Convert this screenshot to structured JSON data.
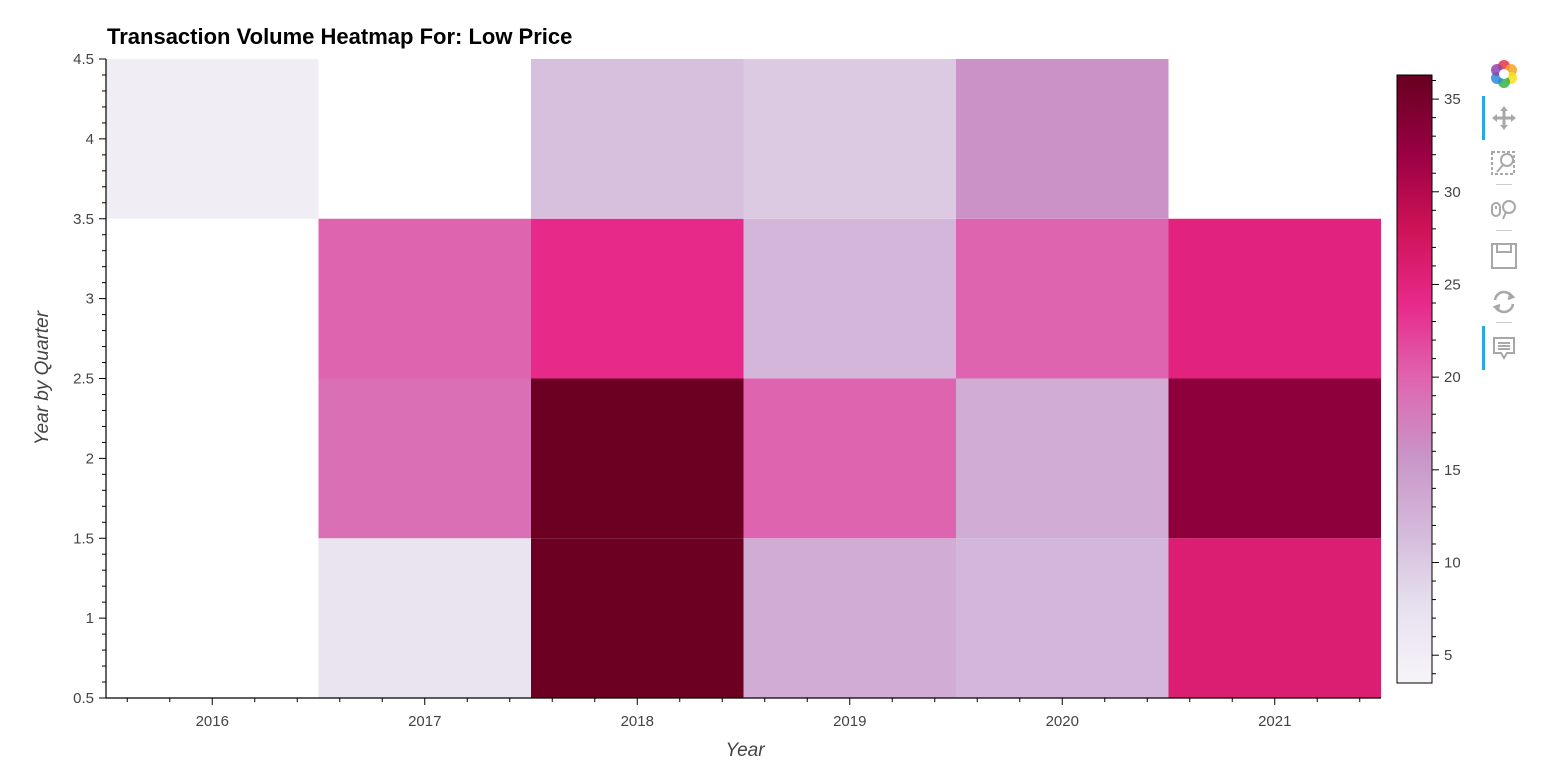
{
  "chart_data": {
    "type": "heatmap",
    "title": "Transaction Volume Heatmap For: Low Price",
    "xlabel": "Year",
    "ylabel": "Year by Quarter",
    "x_categories": [
      "2016",
      "2017",
      "2018",
      "2019",
      "2020",
      "2021"
    ],
    "y_ticks": [
      "0.5",
      "1",
      "1.5",
      "2",
      "2.5",
      "3",
      "3.5",
      "4",
      "4.5"
    ],
    "ylim": [
      0.5,
      4.5
    ],
    "cells": [
      {
        "year": "2016",
        "quarter": 4,
        "value": 5
      },
      {
        "year": "2017",
        "quarter": 1,
        "value": 7
      },
      {
        "year": "2017",
        "quarter": 2,
        "value": 19
      },
      {
        "year": "2017",
        "quarter": 3,
        "value": 20
      },
      {
        "year": "2018",
        "quarter": 1,
        "value": 36
      },
      {
        "year": "2018",
        "quarter": 2,
        "value": 36
      },
      {
        "year": "2018",
        "quarter": 3,
        "value": 24
      },
      {
        "year": "2018",
        "quarter": 4,
        "value": 11
      },
      {
        "year": "2019",
        "quarter": 1,
        "value": 13
      },
      {
        "year": "2019",
        "quarter": 2,
        "value": 20
      },
      {
        "year": "2019",
        "quarter": 3,
        "value": 12
      },
      {
        "year": "2019",
        "quarter": 4,
        "value": 10
      },
      {
        "year": "2020",
        "quarter": 1,
        "value": 12
      },
      {
        "year": "2020",
        "quarter": 2,
        "value": 13
      },
      {
        "year": "2020",
        "quarter": 3,
        "value": 20
      },
      {
        "year": "2020",
        "quarter": 4,
        "value": 16
      },
      {
        "year": "2021",
        "quarter": 1,
        "value": 26
      },
      {
        "year": "2021",
        "quarter": 2,
        "value": 33
      },
      {
        "year": "2021",
        "quarter": 3,
        "value": 25
      }
    ],
    "colorbar": {
      "range": [
        3.5,
        36.3
      ],
      "ticks": [
        "5",
        "10",
        "15",
        "20",
        "25",
        "30",
        "35"
      ],
      "palette": [
        "#f7f4f9",
        "#e7e1ef",
        "#d4b9da",
        "#c994c7",
        "#df65b0",
        "#e7298a",
        "#ce1256",
        "#980043",
        "#67001f"
      ]
    },
    "grid": false
  },
  "toolbar": {
    "tools": [
      {
        "icon": "bokeh-logo-icon"
      },
      {
        "icon": "pan-icon",
        "active": true
      },
      {
        "icon": "box-zoom-icon",
        "active": false
      },
      {
        "icon": "wheel-zoom-icon",
        "active": false
      },
      {
        "icon": "save-icon",
        "active": false
      },
      {
        "icon": "reset-icon",
        "active": false
      },
      {
        "icon": "hover-icon",
        "active": true
      }
    ]
  }
}
